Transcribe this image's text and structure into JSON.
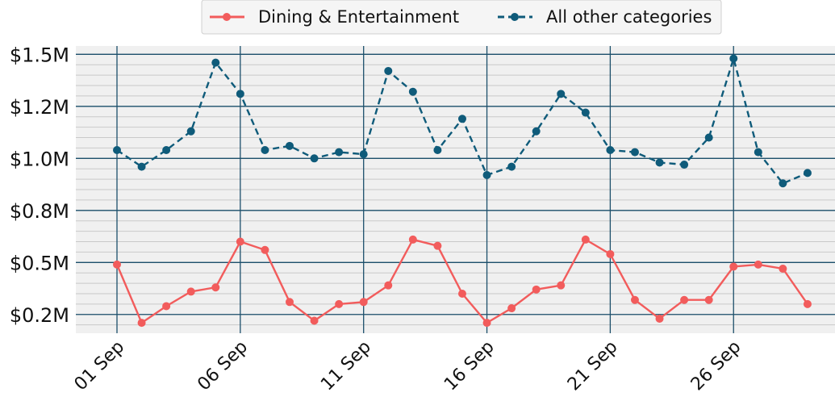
{
  "chart_data": {
    "type": "line",
    "x": [
      "01 Sep",
      "02 Sep",
      "03 Sep",
      "04 Sep",
      "05 Sep",
      "06 Sep",
      "07 Sep",
      "08 Sep",
      "09 Sep",
      "10 Sep",
      "11 Sep",
      "12 Sep",
      "13 Sep",
      "14 Sep",
      "15 Sep",
      "16 Sep",
      "17 Sep",
      "18 Sep",
      "19 Sep",
      "20 Sep",
      "21 Sep",
      "22 Sep",
      "23 Sep",
      "24 Sep",
      "25 Sep",
      "26 Sep",
      "27 Sep",
      "28 Sep",
      "29 Sep"
    ],
    "xticks": [
      "01 Sep",
      "06 Sep",
      "11 Sep",
      "16 Sep",
      "21 Sep",
      "26 Sep"
    ],
    "yticks": [
      {
        "value": 0.25,
        "label": "$0.2M"
      },
      {
        "value": 0.5,
        "label": "$0.5M"
      },
      {
        "value": 0.75,
        "label": "$0.8M"
      },
      {
        "value": 1.0,
        "label": "$1.0M"
      },
      {
        "value": 1.25,
        "label": "$1.2M"
      },
      {
        "value": 1.5,
        "label": "$1.5M"
      }
    ],
    "ylim": [
      0.16,
      1.54
    ],
    "grid": true,
    "legend_position": "top-center",
    "series": [
      {
        "name": "Dining & Entertainment",
        "color": "#f25c5c",
        "linestyle": "solid",
        "values": [
          0.49,
          0.21,
          0.29,
          0.36,
          0.38,
          0.6,
          0.56,
          0.31,
          0.22,
          0.3,
          0.31,
          0.39,
          0.61,
          0.58,
          0.35,
          0.21,
          0.28,
          0.37,
          0.39,
          0.61,
          0.54,
          0.32,
          0.23,
          0.32,
          0.32,
          0.48,
          0.49,
          0.47,
          0.3
        ]
      },
      {
        "name": "All other categories",
        "color": "#0f5b7a",
        "linestyle": "dashed",
        "values": [
          1.04,
          0.96,
          1.04,
          1.13,
          1.46,
          1.31,
          1.04,
          1.06,
          1.0,
          1.03,
          1.02,
          1.42,
          1.32,
          1.04,
          1.19,
          0.92,
          0.96,
          1.13,
          1.31,
          1.22,
          1.04,
          1.03,
          0.98,
          0.97,
          1.1,
          1.48,
          1.03,
          0.88,
          0.93
        ]
      }
    ]
  }
}
